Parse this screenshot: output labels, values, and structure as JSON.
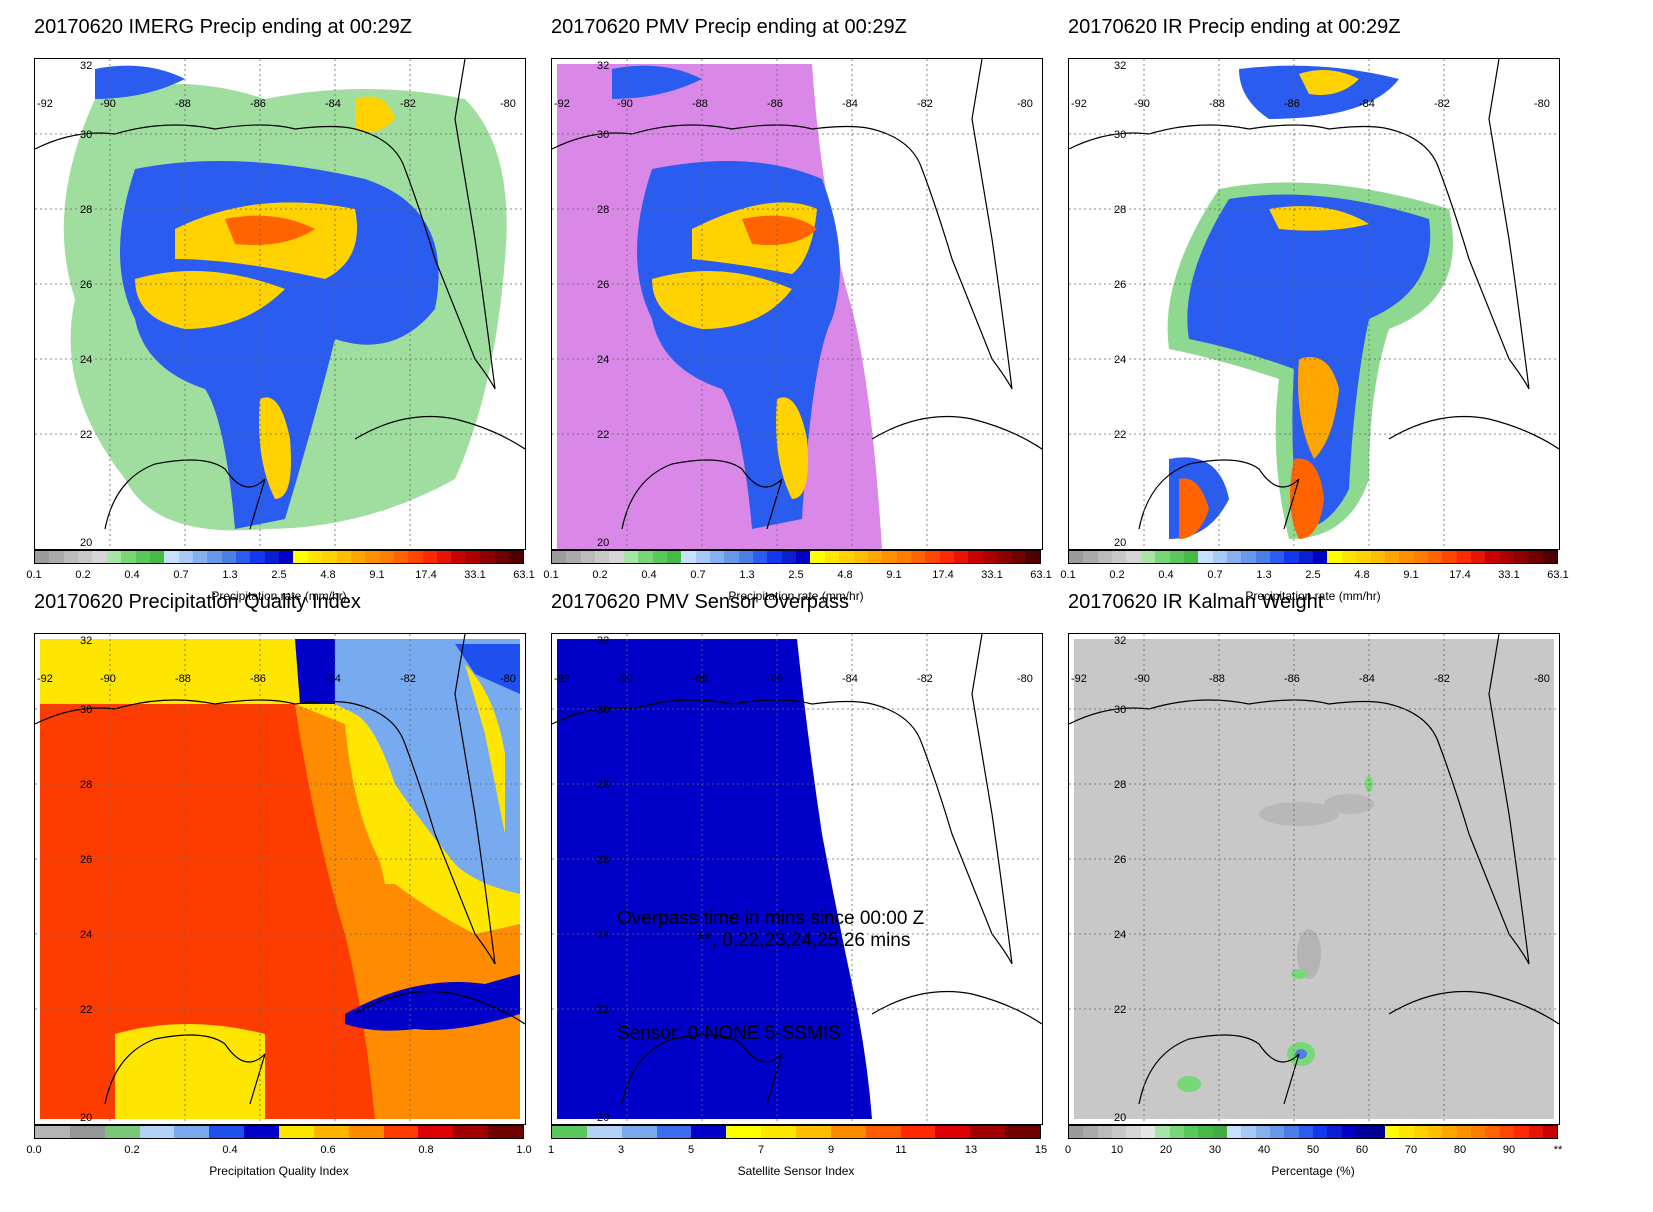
{
  "lon_labels": [
    "-92",
    "-90",
    "-88",
    "-86",
    "-84",
    "-82",
    "-80"
  ],
  "lat_labels": [
    "32",
    "30",
    "28",
    "26",
    "24",
    "22",
    "20"
  ],
  "precip_colors": [
    "#9b9b9b",
    "#aaaaaa",
    "#bbbbbb",
    "#c8c8c8",
    "#d6d6d6",
    "#a8e6a8",
    "#78d878",
    "#5ac85a",
    "#44bb44",
    "#c8e0ff",
    "#a8c8f8",
    "#88b0f0",
    "#6898ea",
    "#4a80e6",
    "#2a5cf0",
    "#1436f0",
    "#0a1ed2",
    "#0000c8",
    "#ffff00",
    "#ffe600",
    "#ffd200",
    "#ffbe00",
    "#ffa500",
    "#ff9100",
    "#ff7d00",
    "#ff6400",
    "#ff4600",
    "#ff2800",
    "#e61400",
    "#c80000",
    "#aa0000",
    "#8c0000",
    "#6e0000",
    "#500000"
  ],
  "precip_ticks": [
    "0.1",
    "0.2",
    "0.4",
    "0.7",
    "1.3",
    "2.5",
    "4.8",
    "9.1",
    "17.4",
    "33.1",
    "63.1"
  ],
  "precip_label": "Precipitation rate (mm/hr)",
  "quality_colors": [
    "#b4b4b4",
    "#969696",
    "#78c878",
    "#b4d2f8",
    "#78aaf0",
    "#1e50f0",
    "#0000c8",
    "#ffe600",
    "#ffb400",
    "#ff8c00",
    "#ff3c00",
    "#dc0000",
    "#a00000",
    "#6e0000"
  ],
  "quality_ticks": [
    "0.0",
    "0.2",
    "0.4",
    "0.6",
    "0.8",
    "1.0"
  ],
  "quality_label": "Precipitation Quality Index",
  "sensor_colors": [
    "#5ac85a",
    "#b4d2f8",
    "#78aaf0",
    "#3c6cf0",
    "#0000c8",
    "#ffff00",
    "#ffe600",
    "#ffbe00",
    "#ff8c00",
    "#ff5a00",
    "#ff2800",
    "#dc0000",
    "#a00000",
    "#6e0000"
  ],
  "sensor_ticks": [
    "1",
    "3",
    "5",
    "7",
    "9",
    "11",
    "13",
    "15"
  ],
  "sensor_label": "Satellite Sensor Index",
  "kalman_colors": [
    "#9b9b9b",
    "#aaaaaa",
    "#bbbbbb",
    "#c8c8c8",
    "#d6d6d6",
    "#e6e6e6",
    "#a8e6a8",
    "#78d878",
    "#5ac85a",
    "#44bb44",
    "#44aa44",
    "#c8e0ff",
    "#a8c8f8",
    "#88b0f0",
    "#6898ea",
    "#4a80e6",
    "#2a5cf0",
    "#1436f0",
    "#0a1ed2",
    "#0000c8",
    "#00009a",
    "#00008c",
    "#ffff00",
    "#ffe600",
    "#ffd200",
    "#ffbe00",
    "#ffa500",
    "#ff9100",
    "#ff7d00",
    "#ff6400",
    "#ff4600",
    "#ff2800",
    "#e61400",
    "#c80000"
  ],
  "kalman_ticks": [
    "0",
    "10",
    "20",
    "30",
    "40",
    "50",
    "60",
    "70",
    "80",
    "90",
    "**"
  ],
  "kalman_label": "Percentage (%)",
  "panels": {
    "imerg": {
      "title": "20170620 IMERG Precip ending at 00:29Z"
    },
    "pmv": {
      "title": "20170620 PMV Precip ending at 00:29Z"
    },
    "ir": {
      "title": "20170620 IR Precip ending at 00:29Z"
    },
    "quality": {
      "title": "20170620 Precipitation Quality Index"
    },
    "sensor": {
      "title": "20170620 PMV Sensor Overpass",
      "overpass_line1": "Overpass time in mins since 00:00 Z",
      "overpass_line2": "**, 0,22,23,24,25,26 mins",
      "sensor_line": "Sensor:   0-NONE  5-SSMIS"
    },
    "kalman": {
      "title": "20170620 IR Kalman Weight"
    }
  }
}
